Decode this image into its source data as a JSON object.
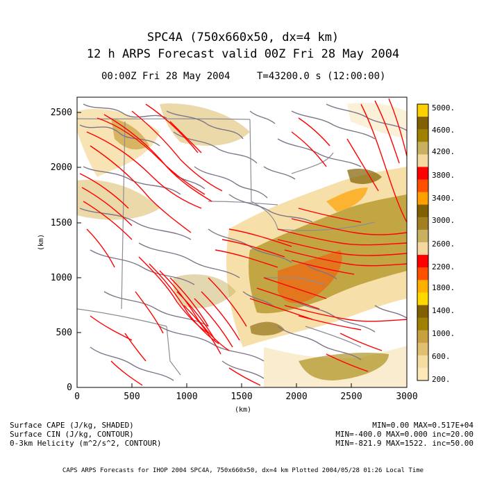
{
  "header": {
    "line1": "SPC4A (750x660x50, dx=4 km)",
    "line2": "12 h ARPS Forecast valid 00Z Fri 28 May 2004",
    "time_label": "00:00Z Fri 28 May 2004",
    "time_seconds": "T=43200.0 s (12:00:00)"
  },
  "axes": {
    "x_ticks": [
      "0",
      "500",
      "1000",
      "1500",
      "2000",
      "2500",
      "3000"
    ],
    "y_ticks": [
      "0",
      "500",
      "1000",
      "1500",
      "2000",
      "2500"
    ],
    "x_unit": "(km)",
    "y_unit": "(km)"
  },
  "colorbar": {
    "labels": [
      "5000.",
      "4600.",
      "4200.",
      "3800.",
      "3400.",
      "3000.",
      "2600.",
      "2200.",
      "1800.",
      "1400.",
      "1000.",
      "600.",
      "200."
    ],
    "colors": [
      "#ffd000",
      "#806000",
      "#a08000",
      "#c8b060",
      "#f5d8a0",
      "#ff0000",
      "#ff5000",
      "#ffa000",
      "#806000",
      "#a08020",
      "#c8b060",
      "#f5d8a0",
      "#ff0000",
      "#ff5000",
      "#ffb000",
      "#ffd800",
      "#806000",
      "#a08000",
      "#c8a040",
      "#e0c070",
      "#f5dca0",
      "#ffe8b8"
    ]
  },
  "legend": {
    "field1": "Surface CAPE (J/kg, SHADED)",
    "field2": "Surface CIN (J/kg, CONTOUR)",
    "field3": "0-3km Helicity (m^2/s^2, CONTOUR)",
    "stats1": "MIN=0.00 MAX=0.517E+04",
    "stats2": "MIN=-400.0 MAX=0.000 inc=20.00",
    "stats3": "MIN=-821.9 MAX=1522. inc=50.00"
  },
  "footer": "CAPS ARPS Forecasts for IHOP 2004   SPC4A, 750x660x50, dx=4 km   Plotted 2004/05/28 01:26 Local Time",
  "styles": {
    "cin_color": "#7f7488",
    "helicity_color": "#ff0000",
    "border_color": "#8c8c96"
  }
}
